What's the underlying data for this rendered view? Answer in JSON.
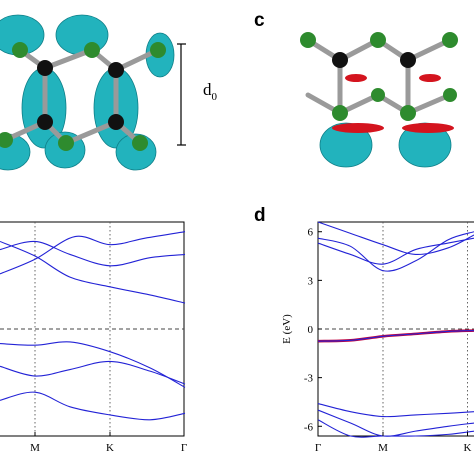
{
  "panel_labels": {
    "c": "c",
    "d": "d"
  },
  "structure_b": {
    "height_label": "d",
    "height_subscript": "0"
  },
  "chart_data": [
    {
      "panel": "bottom-left",
      "type": "line",
      "title": "",
      "xlabel": "",
      "ylabel": "",
      "x_ticks": [
        "M",
        "K",
        "Γ"
      ],
      "fermi_line": "dashed",
      "series": [
        {
          "values": [
            [
              0,
              5.4
            ],
            [
              35,
              4.5
            ],
            [
              70,
              3.2
            ],
            [
              110,
              2.6
            ],
            [
              150,
              2.1
            ],
            [
              185,
              1.6
            ]
          ]
        },
        {
          "values": [
            [
              0,
              4.9
            ],
            [
              35,
              5.4
            ],
            [
              70,
              4.6
            ],
            [
              110,
              3.9
            ],
            [
              150,
              4.4
            ],
            [
              185,
              4.6
            ]
          ]
        },
        {
          "values": [
            [
              0,
              3.4
            ],
            [
              35,
              4.3
            ],
            [
              75,
              5.7
            ],
            [
              110,
              5.2
            ],
            [
              145,
              5.6
            ],
            [
              185,
              6.0
            ]
          ]
        },
        {
          "values": [
            [
              0,
              -0.9
            ],
            [
              35,
              -1.0
            ],
            [
              70,
              -0.8
            ],
            [
              110,
              -1.4
            ],
            [
              150,
              -2.4
            ],
            [
              185,
              -3.6
            ]
          ]
        },
        {
          "values": [
            [
              0,
              -2.3
            ],
            [
              35,
              -2.9
            ],
            [
              70,
              -2.5
            ],
            [
              110,
              -2.0
            ],
            [
              150,
              -2.6
            ],
            [
              185,
              -3.4
            ]
          ]
        },
        {
          "values": [
            [
              0,
              -4.4
            ],
            [
              35,
              -3.9
            ],
            [
              70,
              -4.8
            ],
            [
              110,
              -5.3
            ],
            [
              150,
              -5.6
            ],
            [
              185,
              -5.2
            ]
          ]
        }
      ]
    },
    {
      "panel": "d",
      "type": "line",
      "title": "",
      "xlabel": "",
      "ylabel": "E (eV)",
      "y_ticks": [
        "6",
        "3",
        "0",
        "-3",
        "-6"
      ],
      "x_ticks": [
        "Γ",
        "M",
        "K"
      ],
      "ylim": [
        -6.6,
        6.6
      ],
      "fermi_line": "dashed",
      "series": [
        {
          "values": [
            [
              0,
              6.6
            ],
            [
              1,
              5.9
            ],
            [
              2,
              5.2
            ],
            [
              3,
              4.6
            ],
            [
              4,
              5.0
            ],
            [
              4.8,
              5.8
            ]
          ]
        },
        {
          "values": [
            [
              0,
              5.6
            ],
            [
              1,
              5.1
            ],
            [
              2,
              3.6
            ],
            [
              3,
              4.2
            ],
            [
              4,
              5.5
            ],
            [
              4.8,
              6.0
            ]
          ]
        },
        {
          "values": [
            [
              0,
              5.3
            ],
            [
              1,
              4.6
            ],
            [
              2,
              4.0
            ],
            [
              3,
              4.9
            ],
            [
              4,
              5.3
            ],
            [
              4.8,
              5.6
            ]
          ]
        },
        {
          "values": [
            [
              0,
              -0.75
            ],
            [
              1,
              -0.7
            ],
            [
              2,
              -0.45
            ],
            [
              3,
              -0.3
            ],
            [
              4,
              -0.15
            ],
            [
              4.8,
              -0.1
            ]
          ],
          "highlight": "#c0003c"
        },
        {
          "values": [
            [
              0,
              -4.6
            ],
            [
              1,
              -5.1
            ],
            [
              2,
              -5.4
            ],
            [
              3,
              -5.3
            ],
            [
              4,
              -5.2
            ],
            [
              4.8,
              -5.1
            ]
          ]
        },
        {
          "values": [
            [
              0,
              -5.0
            ],
            [
              1,
              -5.8
            ],
            [
              2,
              -6.6
            ],
            [
              3,
              -6.3
            ],
            [
              4,
              -6.0
            ],
            [
              4.8,
              -5.8
            ]
          ]
        },
        {
          "values": [
            [
              0,
              -5.6
            ],
            [
              1,
              -6.6
            ],
            [
              2,
              -6.6
            ],
            [
              3,
              -6.6
            ],
            [
              4,
              -6.5
            ],
            [
              4.8,
              -6.3
            ]
          ]
        }
      ]
    }
  ]
}
